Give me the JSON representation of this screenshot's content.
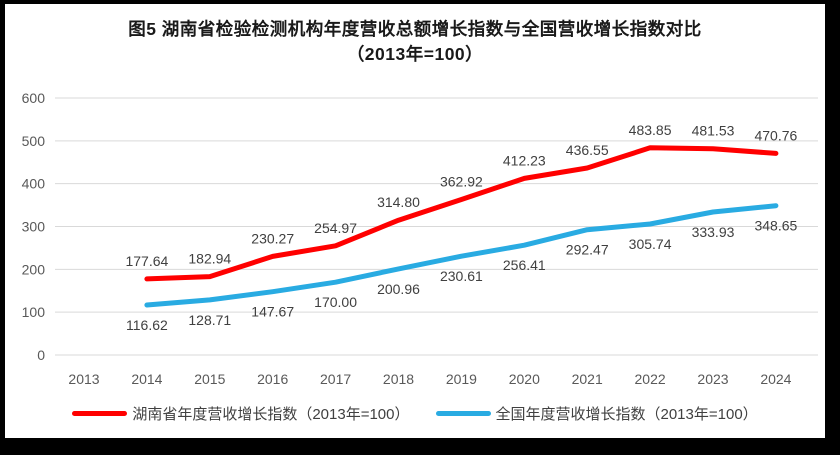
{
  "chart_data": {
    "type": "line",
    "title": "图5 湖南省检验检测机构年度营收总额增长指数与全国营收增长指数对比",
    "subtitle": "（2013年=100）",
    "x": [
      2013,
      2014,
      2015,
      2016,
      2017,
      2018,
      2019,
      2020,
      2021,
      2022,
      2023,
      2024
    ],
    "series": [
      {
        "name": "湖南省年度营收增长指数（2013年=100）",
        "color": "#FF0000",
        "label_position": "above",
        "values": [
          null,
          177.64,
          182.94,
          230.27,
          254.97,
          314.8,
          362.92,
          412.23,
          436.55,
          483.85,
          481.53,
          470.76
        ]
      },
      {
        "name": "全国年度营收增长指数（2013年=100）",
        "color": "#29ABE2",
        "label_position": "below",
        "values": [
          null,
          116.62,
          128.71,
          147.67,
          170.0,
          200.96,
          230.61,
          256.41,
          292.47,
          305.74,
          333.93,
          348.65
        ]
      }
    ],
    "ylim": [
      0,
      600
    ],
    "ytick_step": 100,
    "yticks": [
      0,
      100,
      200,
      300,
      400,
      500,
      600
    ],
    "grid": true,
    "legend_position": "bottom",
    "decimals": 2,
    "colors": {
      "gridline": "#D9D9D9",
      "axis_text": "#595959",
      "label_text": "#404040",
      "frame": "#000000",
      "panel": "#FFFFFF"
    }
  }
}
